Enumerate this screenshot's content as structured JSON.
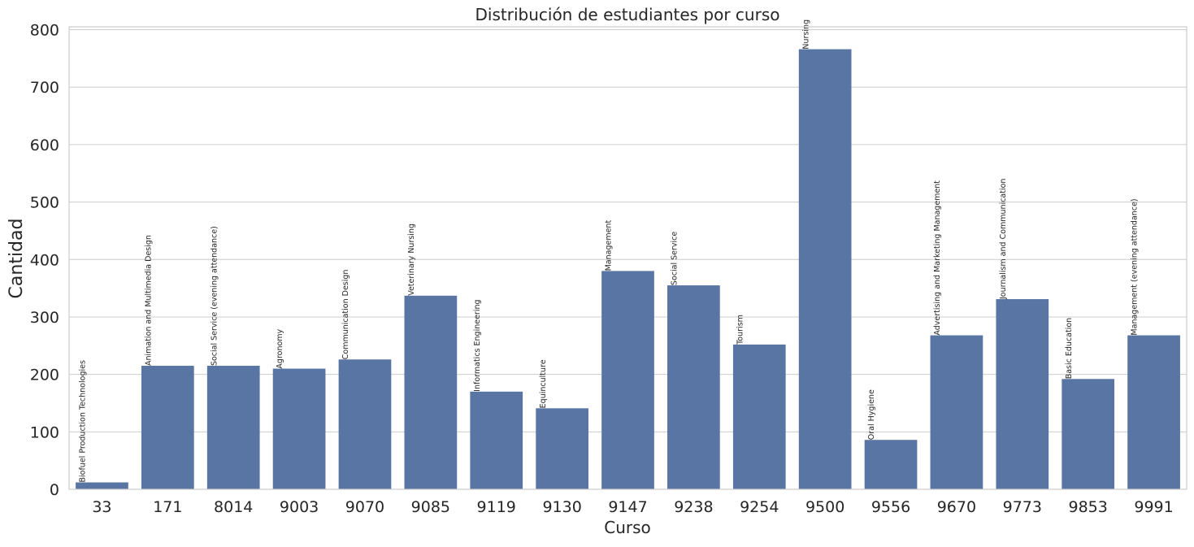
{
  "chart_data": {
    "type": "bar",
    "title": "Distribución de estudiantes por curso",
    "xlabel": "Curso",
    "ylabel": "Cantidad",
    "ylim": [
      0,
      805
    ],
    "yticks": [
      0,
      100,
      200,
      300,
      400,
      500,
      600,
      700,
      800
    ],
    "grid": true,
    "bar_color": "#5975a4",
    "categories": [
      "33",
      "171",
      "8014",
      "9003",
      "9070",
      "9085",
      "9119",
      "9130",
      "9147",
      "9238",
      "9254",
      "9500",
      "9556",
      "9670",
      "9773",
      "9853",
      "9991"
    ],
    "values": [
      12,
      215,
      215,
      210,
      226,
      337,
      170,
      141,
      380,
      355,
      252,
      766,
      86,
      268,
      331,
      192,
      268
    ],
    "bar_labels": [
      "Biofuel Production Technologies",
      "Animation and Multimedia Design",
      "Social Service (evening attendance)",
      "Agronomy",
      "Communication Design",
      "Veterinary Nursing",
      "Informatics Engineering",
      "Equinculture",
      "Management",
      "Social Service",
      "Tourism",
      "Nursing",
      "Oral Hygiene",
      "Advertising and Marketing Management",
      "Journalism and Communication",
      "Basic Education",
      "Management (evening attendance)"
    ]
  }
}
